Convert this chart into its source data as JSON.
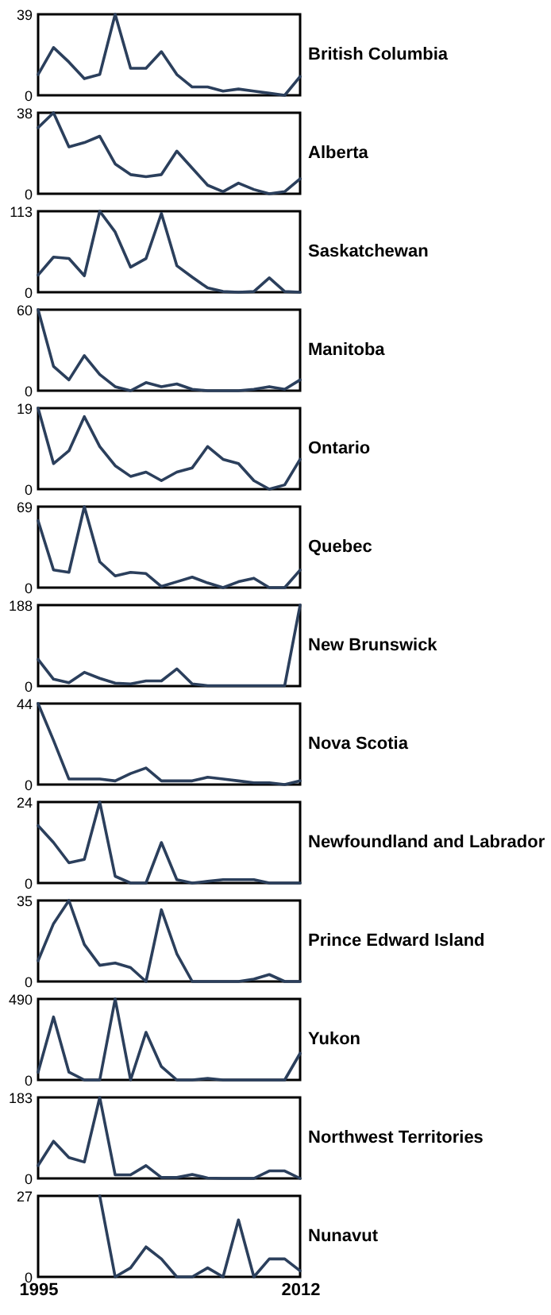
{
  "chart_data": [
    {
      "type": "line",
      "title": "British Columbia",
      "x": [
        1995,
        1996,
        1997,
        1998,
        1999,
        2000,
        2001,
        2002,
        2003,
        2004,
        2005,
        2006,
        2007,
        2008,
        2009,
        2010,
        2011,
        2012
      ],
      "values": [
        10,
        23,
        16,
        8,
        10,
        39,
        13,
        13,
        21,
        10,
        4,
        4,
        2,
        3,
        2,
        1,
        0,
        9
      ],
      "color": "#2b3f5c",
      "xlim": [
        1995,
        2012
      ],
      "ylim": [
        0,
        39
      ],
      "yticks": [
        0,
        39
      ],
      "tick_labels": "y",
      "grid": false
    },
    {
      "type": "line",
      "title": "Alberta",
      "x": [
        1995,
        1996,
        1997,
        1998,
        1999,
        2000,
        2001,
        2002,
        2003,
        2004,
        2005,
        2006,
        2007,
        2008,
        2009,
        2010,
        2011,
        2012
      ],
      "values": [
        31,
        38,
        22,
        24,
        27,
        14,
        9,
        8,
        9,
        20,
        12,
        4,
        1,
        5,
        2,
        0,
        1,
        7
      ],
      "color": "#2b3f5c",
      "xlim": [
        1995,
        2012
      ],
      "ylim": [
        0,
        38
      ],
      "yticks": [
        0,
        38
      ],
      "tick_labels": "y",
      "grid": false
    },
    {
      "type": "line",
      "title": "Saskatchewan",
      "x": [
        1995,
        1996,
        1997,
        1998,
        1999,
        2000,
        2001,
        2002,
        2003,
        2004,
        2005,
        2006,
        2007,
        2008,
        2009,
        2010,
        2011,
        2012
      ],
      "values": [
        24,
        49,
        47,
        23,
        113,
        84,
        35,
        47,
        110,
        37,
        21,
        6,
        1,
        0,
        1,
        20,
        1,
        0
      ],
      "color": "#2b3f5c",
      "xlim": [
        1995,
        2012
      ],
      "ylim": [
        0,
        113
      ],
      "yticks": [
        0,
        113
      ],
      "tick_labels": "y",
      "grid": false
    },
    {
      "type": "line",
      "title": "Manitoba",
      "x": [
        1995,
        1996,
        1997,
        1998,
        1999,
        2000,
        2001,
        2002,
        2003,
        2004,
        2005,
        2006,
        2007,
        2008,
        2009,
        2010,
        2011,
        2012
      ],
      "values": [
        60,
        18,
        8,
        26,
        12,
        3,
        0,
        6,
        3,
        5,
        1,
        0,
        0,
        0,
        1,
        3,
        1,
        8
      ],
      "color": "#2b3f5c",
      "xlim": [
        1995,
        2012
      ],
      "ylim": [
        0,
        60
      ],
      "yticks": [
        0,
        60
      ],
      "tick_labels": "y",
      "grid": false
    },
    {
      "type": "line",
      "title": "Ontario",
      "x": [
        1995,
        1996,
        1997,
        1998,
        1999,
        2000,
        2001,
        2002,
        2003,
        2004,
        2005,
        2006,
        2007,
        2008,
        2009,
        2010,
        2011,
        2012
      ],
      "values": [
        19,
        6,
        9,
        17,
        10,
        5.5,
        3,
        4,
        2,
        4,
        5,
        10,
        7,
        6,
        2,
        0,
        1,
        7
      ],
      "color": "#2b3f5c",
      "xlim": [
        1995,
        2012
      ],
      "ylim": [
        0,
        19
      ],
      "yticks": [
        0,
        19
      ],
      "tick_labels": "y",
      "grid": false
    },
    {
      "type": "line",
      "title": "Quebec",
      "x": [
        1995,
        1996,
        1997,
        1998,
        1999,
        2000,
        2001,
        2002,
        2003,
        2004,
        2005,
        2006,
        2007,
        2008,
        2009,
        2010,
        2011,
        2012
      ],
      "values": [
        57,
        15,
        13,
        69,
        22,
        10,
        13,
        12,
        1,
        5,
        9,
        4,
        0,
        5,
        8,
        0,
        0,
        15
      ],
      "color": "#2b3f5c",
      "xlim": [
        1995,
        2012
      ],
      "ylim": [
        0,
        69
      ],
      "yticks": [
        0,
        69
      ],
      "tick_labels": "y",
      "grid": false
    },
    {
      "type": "line",
      "title": "New Brunswick",
      "x": [
        1995,
        1996,
        1997,
        1998,
        1999,
        2000,
        2001,
        2002,
        2003,
        2004,
        2005,
        2006,
        2007,
        2008,
        2009,
        2010,
        2011,
        2012
      ],
      "values": [
        62,
        16,
        8,
        32,
        18,
        7,
        5,
        12,
        12,
        40,
        5,
        1,
        1,
        1,
        1,
        1,
        1,
        188
      ],
      "color": "#2b3f5c",
      "xlim": [
        1995,
        2012
      ],
      "ylim": [
        0,
        188
      ],
      "yticks": [
        0,
        188
      ],
      "tick_labels": "y",
      "grid": false
    },
    {
      "type": "line",
      "title": "Nova Scotia",
      "x": [
        1995,
        1996,
        1997,
        1998,
        1999,
        2000,
        2001,
        2002,
        2003,
        2004,
        2005,
        2006,
        2007,
        2008,
        2009,
        2010,
        2011,
        2012
      ],
      "values": [
        44,
        24,
        3,
        3,
        3,
        2,
        6,
        9,
        2,
        2,
        2,
        4,
        3,
        2,
        1,
        1,
        0,
        2
      ],
      "color": "#2b3f5c",
      "xlim": [
        1995,
        2012
      ],
      "ylim": [
        0,
        44
      ],
      "yticks": [
        0,
        44
      ],
      "tick_labels": "y",
      "grid": false
    },
    {
      "type": "line",
      "title": "Newfoundland and Labrador",
      "x": [
        1995,
        1996,
        1997,
        1998,
        1999,
        2000,
        2001,
        2002,
        2003,
        2004,
        2005,
        2006,
        2007,
        2008,
        2009,
        2010,
        2011,
        2012
      ],
      "values": [
        17,
        12,
        6,
        7,
        24,
        2,
        0,
        0,
        12,
        1,
        0,
        0.5,
        1,
        1,
        1,
        0,
        0,
        0
      ],
      "color": "#2b3f5c",
      "xlim": [
        1995,
        2012
      ],
      "ylim": [
        0,
        24
      ],
      "yticks": [
        0,
        24
      ],
      "tick_labels": "y",
      "grid": false
    },
    {
      "type": "line",
      "title": "Prince Edward Island",
      "x": [
        1995,
        1996,
        1997,
        1998,
        1999,
        2000,
        2001,
        2002,
        2003,
        2004,
        2005,
        2006,
        2007,
        2008,
        2009,
        2010,
        2011,
        2012
      ],
      "values": [
        9,
        25,
        35,
        16,
        7,
        8,
        6,
        0,
        31,
        12,
        0,
        0,
        0,
        0,
        1,
        3,
        0,
        0
      ],
      "color": "#2b3f5c",
      "xlim": [
        1995,
        2012
      ],
      "ylim": [
        0,
        35
      ],
      "yticks": [
        0,
        35
      ],
      "tick_labels": "y",
      "grid": false
    },
    {
      "type": "line",
      "title": "Yukon",
      "x": [
        1995,
        1996,
        1997,
        1998,
        1999,
        2000,
        2001,
        2002,
        2003,
        2004,
        2005,
        2006,
        2007,
        2008,
        2009,
        2010,
        2011,
        2012
      ],
      "values": [
        47,
        381,
        47,
        0,
        0,
        490,
        0,
        288,
        81,
        0,
        0,
        9,
        0,
        0,
        0,
        0,
        0,
        161
      ],
      "color": "#2b3f5c",
      "xlim": [
        1995,
        2012
      ],
      "ylim": [
        0,
        490
      ],
      "yticks": [
        0,
        490
      ],
      "tick_labels": "y",
      "grid": false
    },
    {
      "type": "line",
      "title": "Northwest Territories",
      "x": [
        1995,
        1996,
        1997,
        1998,
        1999,
        2000,
        2001,
        2002,
        2003,
        2004,
        2005,
        2006,
        2007,
        2008,
        2009,
        2010,
        2011,
        2012
      ],
      "values": [
        29,
        84,
        47,
        37,
        183,
        8,
        8,
        29,
        2,
        2,
        9,
        1,
        0,
        0,
        0,
        17,
        17,
        0
      ],
      "color": "#2b3f5c",
      "xlim": [
        1995,
        2012
      ],
      "ylim": [
        0,
        183
      ],
      "yticks": [
        0,
        183
      ],
      "tick_labels": "y",
      "grid": false
    },
    {
      "type": "line",
      "title": "Nunavut",
      "x": [
        1999,
        2000,
        2001,
        2002,
        2003,
        2004,
        2005,
        2006,
        2007,
        2008,
        2009,
        2010,
        2011,
        2012
      ],
      "values": [
        27,
        0,
        3,
        10,
        6,
        0,
        0,
        3,
        0,
        19,
        0,
        6,
        6,
        2
      ],
      "color": "#2b3f5c",
      "xlim": [
        1995,
        2012
      ],
      "ylim": [
        0,
        27
      ],
      "yticks": [
        0,
        27
      ],
      "xticks": [
        1995,
        2012
      ],
      "grid": false
    }
  ]
}
